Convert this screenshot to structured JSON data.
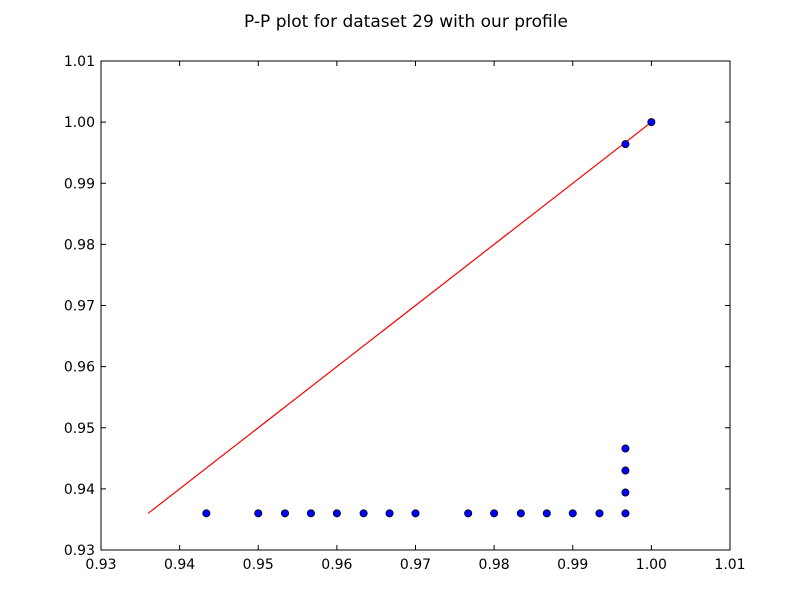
{
  "chart_data": {
    "type": "scatter",
    "title": "P-P plot for dataset 29 with our profile",
    "xlabel": "",
    "ylabel": "",
    "xlim": [
      0.93,
      1.01
    ],
    "ylim": [
      0.93,
      1.01
    ],
    "x_ticks": [
      "0.93",
      "0.94",
      "0.95",
      "0.96",
      "0.97",
      "0.98",
      "0.99",
      "1.00",
      "1.01"
    ],
    "y_ticks": [
      "0.93",
      "0.94",
      "0.95",
      "0.96",
      "0.97",
      "0.98",
      "0.99",
      "1.00",
      "1.01"
    ],
    "grid": false,
    "legend": "none",
    "reference_line": {
      "x": [
        0.936,
        1.0
      ],
      "y": [
        0.936,
        1.0
      ],
      "color": "#ff0000"
    },
    "series": [
      {
        "color": "#0000ff",
        "points": [
          [
            0.9434,
            0.936
          ],
          [
            0.95,
            0.936
          ],
          [
            0.9534,
            0.936
          ],
          [
            0.9567,
            0.936
          ],
          [
            0.96,
            0.936
          ],
          [
            0.9634,
            0.936
          ],
          [
            0.9667,
            0.936
          ],
          [
            0.97,
            0.936
          ],
          [
            0.9767,
            0.936
          ],
          [
            0.98,
            0.936
          ],
          [
            0.9834,
            0.936
          ],
          [
            0.9867,
            0.936
          ],
          [
            0.99,
            0.936
          ],
          [
            0.9934,
            0.936
          ],
          [
            0.9967,
            0.936
          ],
          [
            0.9967,
            0.9394
          ],
          [
            0.9967,
            0.943
          ],
          [
            0.9967,
            0.9466
          ],
          [
            0.9967,
            0.9964
          ],
          [
            1.0,
            1.0
          ]
        ]
      }
    ]
  }
}
